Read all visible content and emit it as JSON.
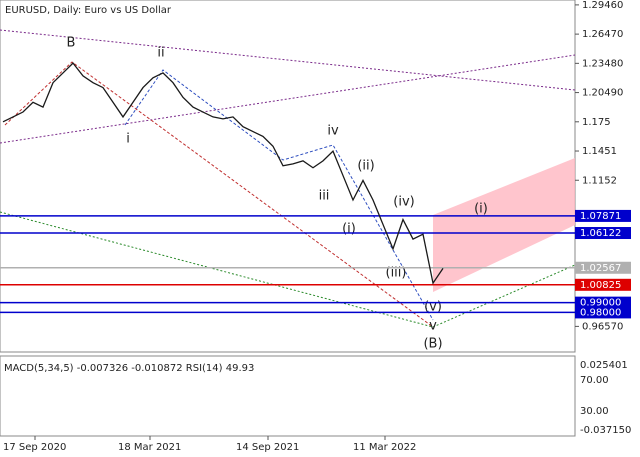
{
  "chart_data": {
    "type": "line",
    "title": "EURUSD, Daily:  Euro vs US Dollar",
    "series": [
      {
        "name": "EURUSD",
        "color": "#1a1a1a",
        "values": [
          1.175,
          1.18,
          1.185,
          1.195,
          1.19,
          1.215,
          1.225,
          1.235,
          1.222,
          1.215,
          1.21,
          1.195,
          1.18,
          1.195,
          1.21,
          1.22,
          1.225,
          1.215,
          1.2,
          1.19,
          1.185,
          1.18,
          1.178,
          1.18,
          1.17,
          1.165,
          1.16,
          1.15,
          1.13,
          1.132,
          1.135,
          1.128,
          1.135,
          1.145,
          1.12,
          1.095,
          1.115,
          1.095,
          1.07,
          1.045,
          1.075,
          1.055,
          1.06,
          1.01,
          1.025
        ]
      }
    ],
    "xticks": [
      {
        "value": 3.2,
        "label": "17 Sep 2020"
      },
      {
        "value": 14.7,
        "label": "18 Mar 2021"
      },
      {
        "value": 26.5,
        "label": "14 Sep 2021"
      },
      {
        "value": 38.2,
        "label": "11 Mar 2022"
      }
    ],
    "ylim": [
      0.9395,
      1.2996
    ],
    "yticks": [
      {
        "value": 1.2946,
        "label": "1.29460"
      },
      {
        "value": 1.2647,
        "label": "1.26470"
      },
      {
        "value": 1.2348,
        "label": "1.23480"
      },
      {
        "value": 1.2049,
        "label": "1.20490"
      },
      1.175,
      1.1451,
      1.1152,
      {
        "value": 0.9657,
        "label": "0.96570"
      }
    ],
    "levels": [
      {
        "value": 1.07871,
        "label": "1.07871",
        "color": "#0000cc"
      },
      {
        "value": 1.06122,
        "label": "1.06122",
        "color": "#0000cc"
      },
      {
        "value": 1.02567,
        "label": "1.02567",
        "color": "#b0b0b0"
      },
      {
        "value": 1.00825,
        "label": "1.00825",
        "color": "#dd0000"
      },
      {
        "value": 0.99,
        "label": "0.99000",
        "color": "#0000cc"
      },
      {
        "value": 0.98,
        "label": "0.98000",
        "color": "#0000cc"
      }
    ],
    "waves": [
      "B",
      "ii",
      "i",
      "iv",
      "iii",
      "(ii)",
      "(i)",
      "(iv)",
      "(iii)",
      "(v)",
      "v",
      "(B)",
      "(i)"
    ],
    "indicator": {
      "header": "MACD(5,34,5) -0.007326 -0.010872 RSI(14) 49.93",
      "labels": [
        "0.025401",
        "70.00",
        "30.00",
        "-0.037150"
      ]
    }
  }
}
